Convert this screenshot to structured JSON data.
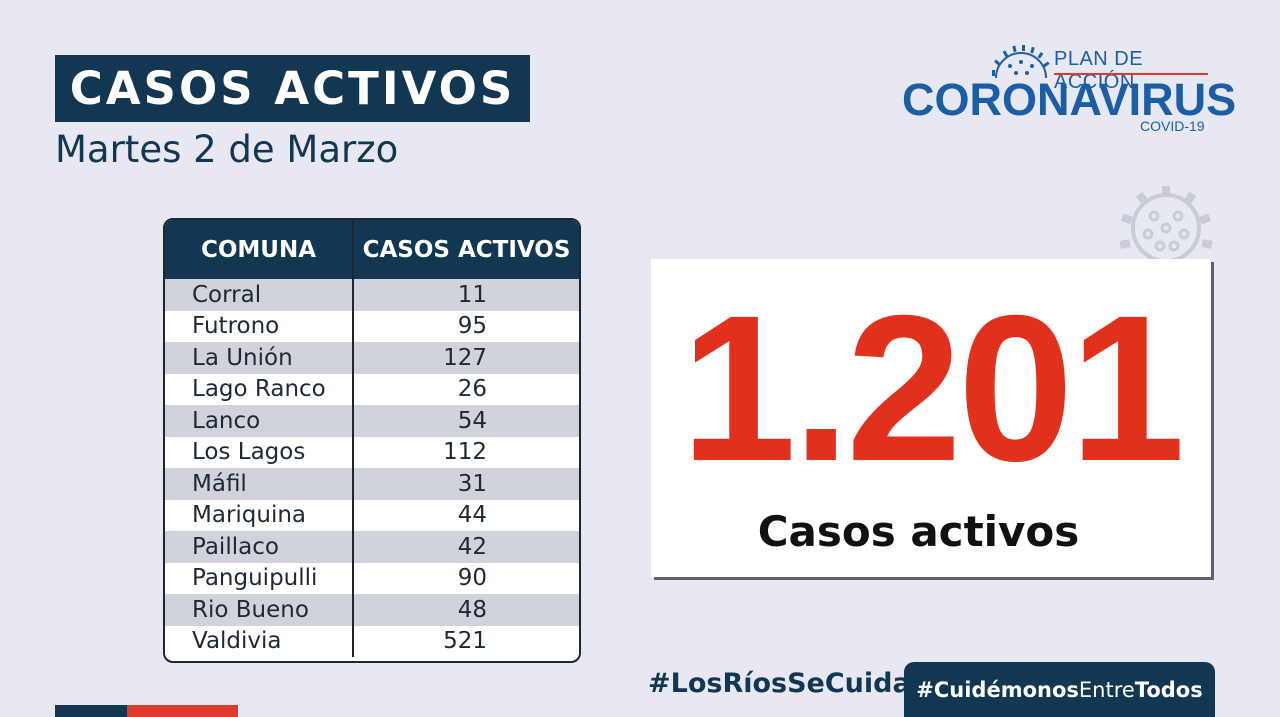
{
  "header": {
    "title": "CASOS ACTIVOS",
    "date": "Martes 2 de Marzo"
  },
  "logo": {
    "plan": "PLAN DE ACCIÓN",
    "name": "CORONAVIRUS",
    "sub": "COVID-19",
    "icon": "virus-icon"
  },
  "table": {
    "columns": [
      "COMUNA",
      "CASOS ACTIVOS"
    ],
    "rows": [
      {
        "comuna": "Corral",
        "casos": "11"
      },
      {
        "comuna": "Futrono",
        "casos": "95"
      },
      {
        "comuna": "La Unión",
        "casos": "127"
      },
      {
        "comuna": "Lago Ranco",
        "casos": "26"
      },
      {
        "comuna": "Lanco",
        "casos": "54"
      },
      {
        "comuna": "Los Lagos",
        "casos": "112"
      },
      {
        "comuna": "Máfil",
        "casos": "31"
      },
      {
        "comuna": "Mariquina",
        "casos": "44"
      },
      {
        "comuna": "Paillaco",
        "casos": "42"
      },
      {
        "comuna": "Panguipulli",
        "casos": "90"
      },
      {
        "comuna": "Rio Bueno",
        "casos": "48"
      },
      {
        "comuna": "Valdivia",
        "casos": "521"
      }
    ]
  },
  "total": {
    "value": "1.201",
    "label": "Casos activos"
  },
  "hashtags": {
    "left": "#LosRíosSeCuida",
    "right_a": "#Cuidémonos",
    "right_b": "Entre",
    "right_c": "Todos"
  },
  "colors": {
    "navy": "#123752",
    "red": "#e1301b",
    "blue": "#1a5fa6",
    "background": "#e7e8f2"
  }
}
